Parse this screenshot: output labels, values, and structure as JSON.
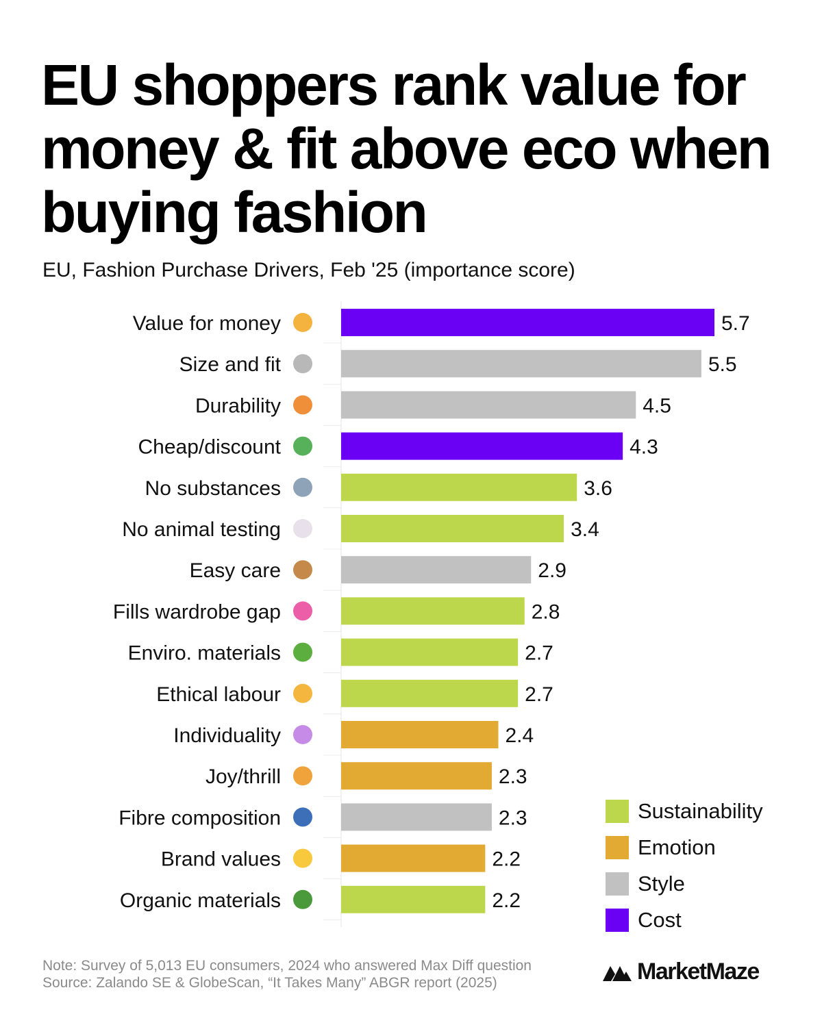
{
  "title": "EU shoppers rank value for money & fit above eco when buying fashion",
  "subtitle": "EU, Fashion Purchase Drivers, Feb '25 (importance score)",
  "colors": {
    "Sustainability": "#bcd74b",
    "Emotion": "#e2aa33",
    "Style": "#c1c1c1",
    "Cost": "#6a00f4"
  },
  "chart_data": {
    "type": "bar",
    "orientation": "horizontal",
    "categories": [
      "Value for money",
      "Size and fit",
      "Durability",
      "Cheap/discount",
      "No substances",
      "No animal testing",
      "Easy care",
      "Fills wardrobe gap",
      "Enviro. materials",
      "Ethical labour",
      "Individuality",
      "Joy/thrill",
      "Fibre composition",
      "Brand values",
      "Organic materials"
    ],
    "values": [
      5.7,
      5.5,
      4.5,
      4.3,
      3.6,
      3.4,
      2.9,
      2.8,
      2.7,
      2.7,
      2.4,
      2.3,
      2.3,
      2.2,
      2.2
    ],
    "value_labels": [
      "5.7",
      "5.5",
      "4.5",
      "4.3",
      "3.6",
      "3.4",
      "2.9",
      "2.8",
      "2.7",
      "2.7",
      "2.4",
      "2.3",
      "2.3",
      "2.2",
      "2.2"
    ],
    "groups": [
      "Cost",
      "Style",
      "Style",
      "Cost",
      "Sustainability",
      "Sustainability",
      "Style",
      "Sustainability",
      "Sustainability",
      "Sustainability",
      "Emotion",
      "Emotion",
      "Style",
      "Emotion",
      "Sustainability"
    ],
    "icons": [
      "coin-icon",
      "ruler-icon",
      "weightlifter-icon",
      "money-wings-icon",
      "ufo-icon",
      "rabbit-icon",
      "basket-icon",
      "tshirt-icon",
      "seedling-icon",
      "handshake-icon",
      "unicorn-icon",
      "party-popper-icon",
      "thread-spool-icon",
      "sparkle-star-icon",
      "broccoli-icon"
    ],
    "legend": [
      "Sustainability",
      "Emotion",
      "Style",
      "Cost"
    ],
    "legend_position": "bottom-right",
    "xlim": [
      0,
      5.7
    ],
    "grid": false
  },
  "footer": {
    "note": "Note: Survey of 5,013 EU consumers, 2024 who answered Max Diff question",
    "source": "Source: Zalando SE & GlobeScan, “It Takes Many” ABGR report (2025)"
  },
  "brand": {
    "name": "MarketMaze",
    "icon": "marketmaze-logo-icon"
  }
}
